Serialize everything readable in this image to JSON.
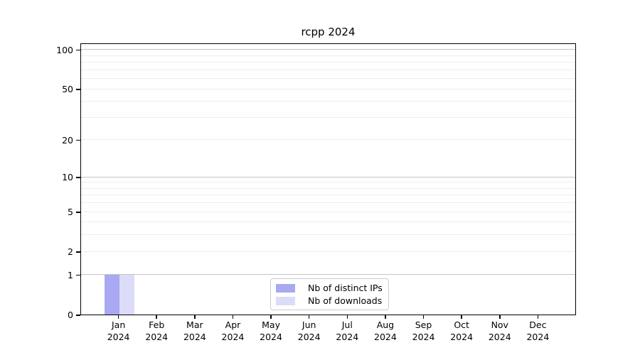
{
  "figure": {
    "background": "#ffffff"
  },
  "chart_data": {
    "type": "bar",
    "title": "rcpp 2024",
    "categories": [
      "Jan 2024",
      "Feb 2024",
      "Mar 2024",
      "Apr 2024",
      "May 2024",
      "Jun 2024",
      "Jul 2024",
      "Aug 2024",
      "Sep 2024",
      "Oct 2024",
      "Nov 2024",
      "Dec 2024"
    ],
    "months": [
      "Jan",
      "Feb",
      "Mar",
      "Apr",
      "May",
      "Jun",
      "Jul",
      "Aug",
      "Sep",
      "Oct",
      "Nov",
      "Dec"
    ],
    "year_label": "2024",
    "series": [
      {
        "name": "Nb of distinct IPs",
        "color": "#a8a9f2",
        "values": [
          1,
          0,
          0,
          0,
          0,
          0,
          0,
          0,
          0,
          0,
          0,
          0
        ]
      },
      {
        "name": "Nb of downloads",
        "color": "#dcdcf8",
        "values": [
          1,
          0,
          0,
          0,
          0,
          0,
          0,
          0,
          0,
          0,
          0,
          0
        ]
      }
    ],
    "xlabel": "",
    "ylabel": "",
    "yscale": "log1p",
    "ylim": [
      0,
      113
    ],
    "yticks": [
      0,
      1,
      2,
      5,
      10,
      20,
      50,
      100
    ],
    "major_grid_values": [
      1,
      10,
      100
    ],
    "minor_grid_values": [
      2,
      3,
      4,
      5,
      6,
      7,
      8,
      9,
      20,
      30,
      40,
      50,
      60,
      70,
      80,
      90
    ],
    "grid": true,
    "legend_position": "bottom-center"
  },
  "colors": {
    "major_grid": "#c4c4c4",
    "minor_grid": "#ededed",
    "axis": "#000000",
    "legend_border": "#cccccc"
  }
}
